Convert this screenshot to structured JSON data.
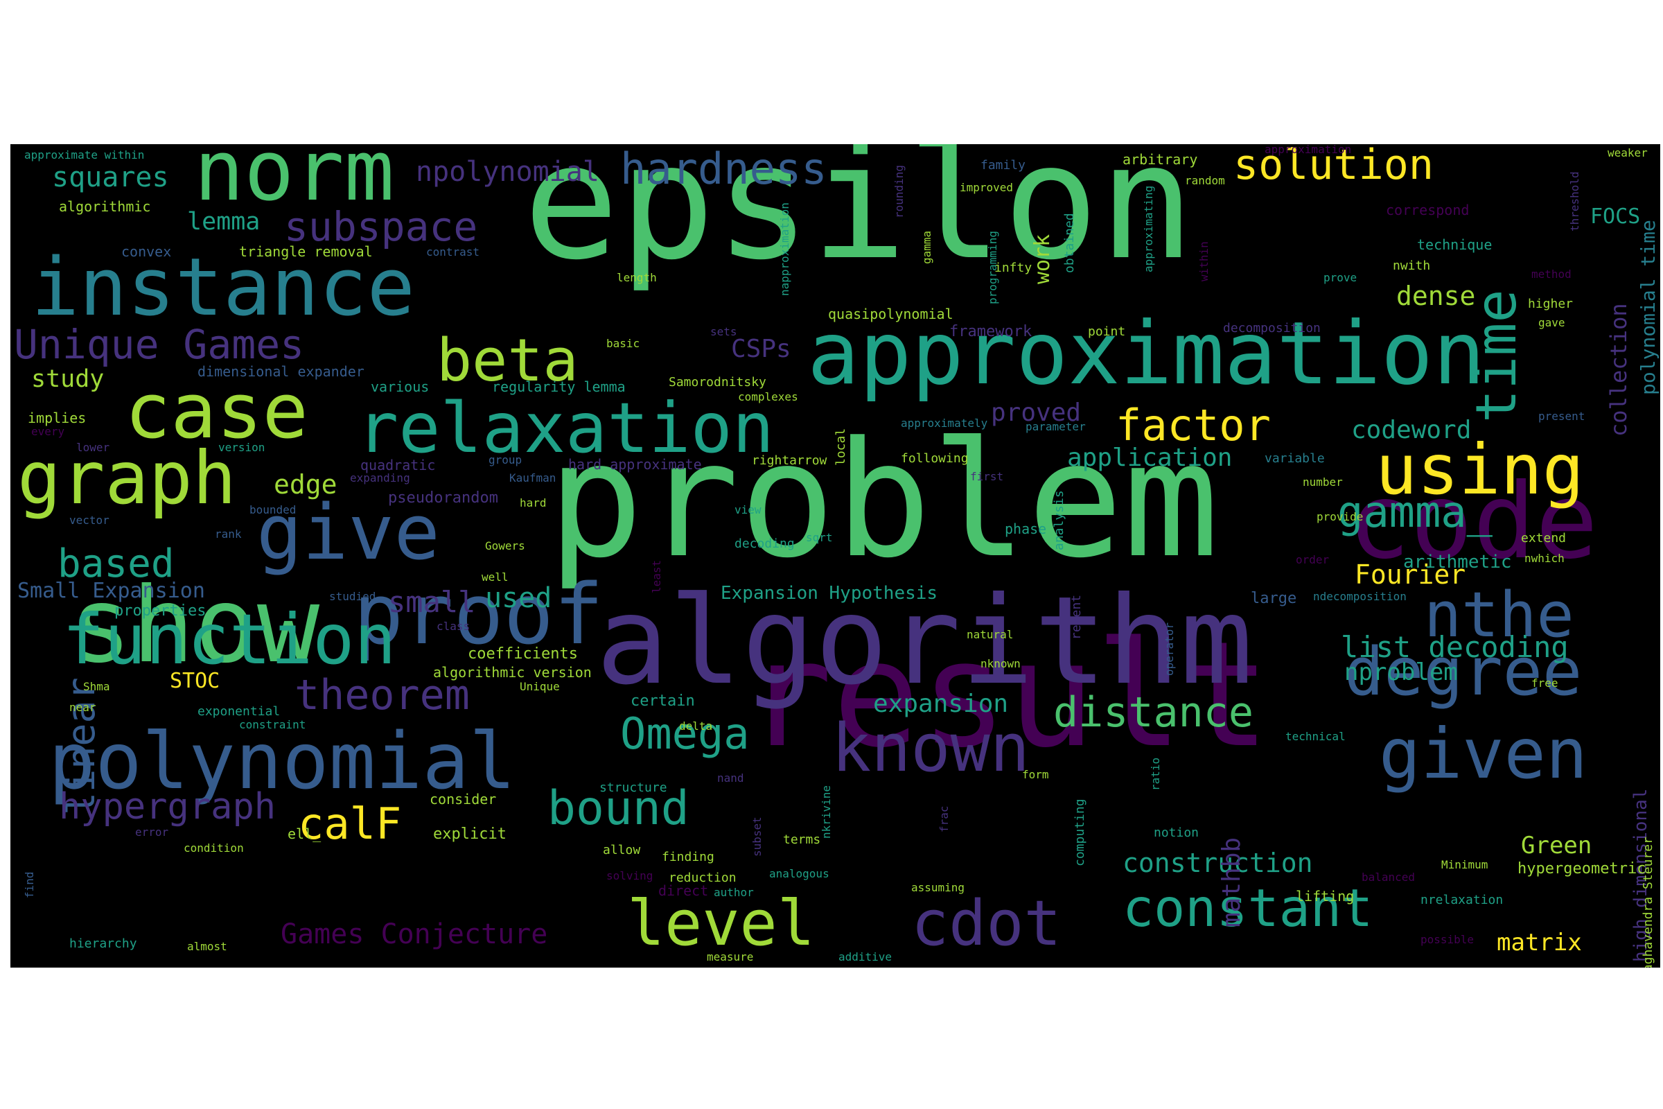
{
  "palette": {
    "yellow": "#fde725",
    "lime": "#a0da39",
    "green": "#4ac16d",
    "teal": "#1fa187",
    "cyan": "#277f8e",
    "blue": "#365c8d",
    "indigo": "#46327e",
    "purple": "#440154"
  },
  "words": [
    "epsilon",
    "problem",
    "result",
    "algorithm",
    "approximation",
    "code",
    "instance",
    "show",
    "norm",
    "proof",
    "polynomial",
    "relaxation",
    "case",
    "graph",
    "give",
    "function",
    "using",
    "time",
    "given",
    "degree",
    "known",
    "nthe",
    "cdot",
    "level",
    "constant",
    "beta",
    "Unique Games",
    "subspace",
    "hardness",
    "solution",
    "factor",
    "theorem",
    "distance",
    "linear",
    "Omega",
    "bound",
    "gamma_",
    "calF",
    "hypergraph",
    "based",
    "npolynomial",
    "squares",
    "lemma",
    "study",
    "CSPs",
    "edge",
    "small",
    "used",
    "dense",
    "codeword",
    "application",
    "construction",
    "list decoding",
    "nproblem",
    "expansion",
    "mathbb",
    "Fourier",
    "Green",
    "matrix",
    "proved",
    "Games Conjecture",
    "Small Expansion",
    "STOC",
    "FOCS",
    "collection",
    "polynomial time",
    "work",
    "high dimensional",
    "Expansion Hypothesis",
    "coefficients",
    "algorithmic version",
    "properties",
    "triangle removal",
    "regularity lemma",
    "dimensional expander",
    "hard approximate",
    "pseudorandom",
    "quadratic",
    "arithmetic",
    "hypergeometric",
    "Raghavendra Steurer",
    "nrelaxation",
    "lifting",
    "direct",
    "technique",
    "correspond",
    "threshold",
    "weaker",
    "arbitrary",
    "random",
    "improved",
    "family",
    "rounding",
    "gamma",
    "programming",
    "infty",
    "obtained",
    "approximating",
    "within",
    "prove",
    "nwith",
    "higher",
    "gave",
    "method",
    "framework",
    "point",
    "quasipolynomial",
    "decomposition",
    "Samorodnitsky",
    "complexes",
    "napproximation",
    "length",
    "contrast",
    "convex",
    "algorithmic",
    "approximate within",
    "implies",
    "every",
    "lower",
    "version",
    "various",
    "basic",
    "sets",
    "local",
    "approximately",
    "parameter",
    "present",
    "following",
    "variable",
    "rightarrow",
    "group",
    "first",
    "number",
    "expanding",
    "Kaufman",
    "hard",
    "phase",
    "analysis",
    "view",
    "sqrt",
    "decoding",
    "provide",
    "extend",
    "nwhich",
    "order",
    "bounded",
    "rank",
    "error",
    "vector",
    "Gowers",
    "well",
    "least",
    "studied",
    "class",
    "recent",
    "large",
    "ndecomposition",
    "natural",
    "nknown",
    "operator",
    "free",
    "Shma",
    "near",
    "Unique",
    "exponential",
    "constraint",
    "certain",
    "delta",
    "technical",
    "form",
    "ratio",
    "nand",
    "consider",
    "structure",
    "explicit",
    "ell_",
    "condition",
    "allow",
    "finding",
    "subset",
    "solving",
    "reduction",
    "terms",
    "nkrivine",
    "analogous",
    "frac",
    "notion",
    "computing",
    "author",
    "assuming",
    "balanced",
    "Minimum",
    "find",
    "hierarchy",
    "almost",
    "measure",
    "additive",
    "possible",
    "approximation "
  ]
}
